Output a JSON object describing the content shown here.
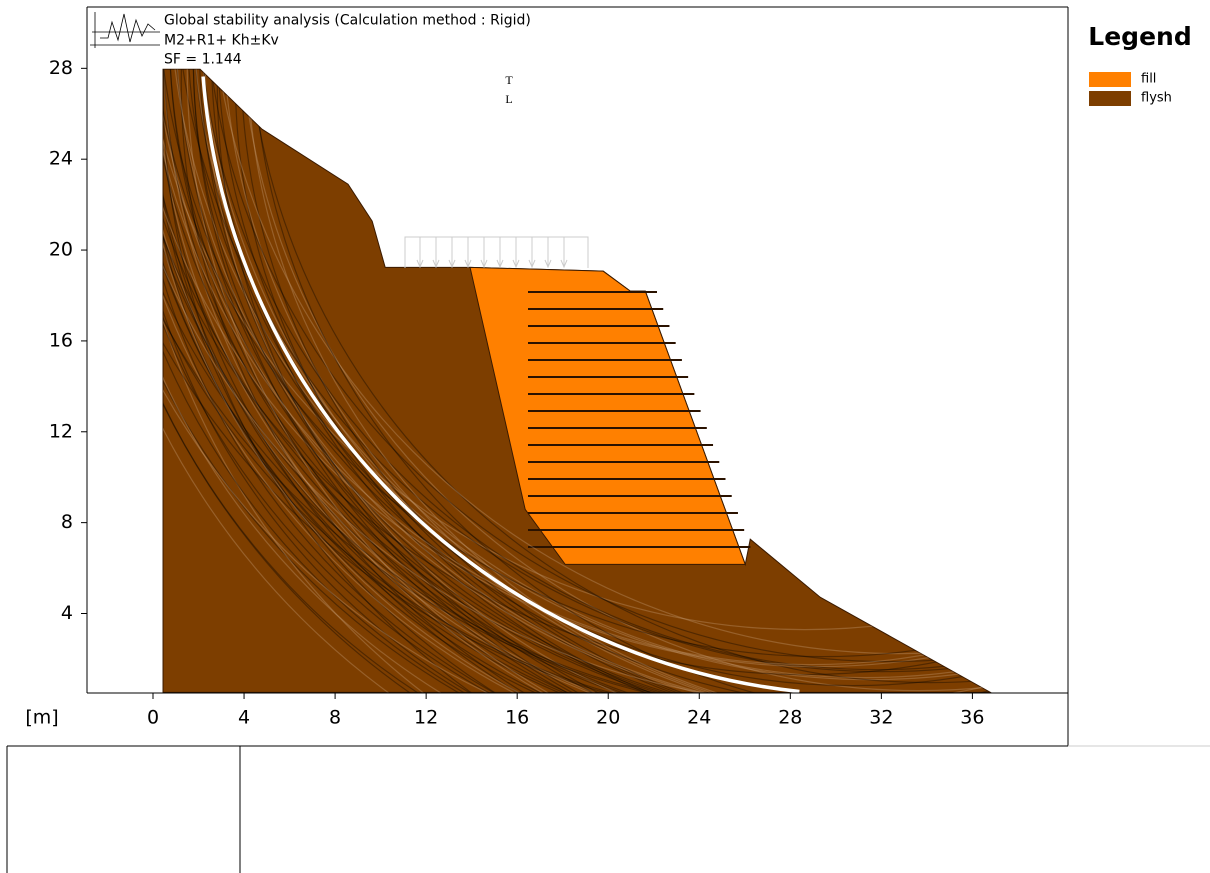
{
  "header": {
    "title": "Global stability analysis (Calculation method : Rigid)",
    "combination": "M2+R1+ Kh±Kv",
    "sf": "SF = 1.144"
  },
  "chart_data": {
    "type": "cross-section",
    "axis_unit": "[m]",
    "xlim": [
      -2.9,
      40.2
    ],
    "ylim": [
      0.5,
      30.7
    ],
    "xticks": [
      0,
      4,
      8,
      12,
      16,
      20,
      24,
      28,
      32,
      36
    ],
    "yticks": [
      4,
      8,
      12,
      16,
      20,
      24,
      28
    ],
    "markers": [
      "T",
      "L"
    ],
    "layers": [
      {
        "name": "fill",
        "color": "#ff8000",
        "points": [
          [
            13.93,
            19.24
          ],
          [
            19.78,
            19.07
          ],
          [
            20.97,
            18.19
          ],
          [
            21.63,
            18.19
          ],
          [
            26.02,
            6.16
          ],
          [
            18.11,
            6.16
          ],
          [
            16.35,
            8.59
          ]
        ]
      },
      {
        "name": "flysh",
        "color": "#7d3e00",
        "points": [
          [
            0.44,
            27.96
          ],
          [
            2.07,
            27.96
          ],
          [
            4.79,
            25.32
          ],
          [
            8.57,
            22.9
          ],
          [
            9.63,
            21.27
          ],
          [
            10.2,
            19.24
          ],
          [
            13.93,
            19.24
          ],
          [
            19.78,
            19.07
          ],
          [
            20.97,
            18.19
          ],
          [
            21.63,
            18.19
          ],
          [
            26.02,
            6.16
          ],
          [
            26.24,
            7.27
          ],
          [
            29.32,
            4.71
          ],
          [
            36.79,
            0.53
          ],
          [
            0.44,
            0.53
          ]
        ]
      }
    ],
    "slip_surface": {
      "center": [
        31.53,
        29.81
      ],
      "radius": 29.41,
      "x_range": [
        2.2,
        28.4
      ],
      "color": "#ffffff"
    }
  },
  "legend": {
    "title": "Legend"
  }
}
